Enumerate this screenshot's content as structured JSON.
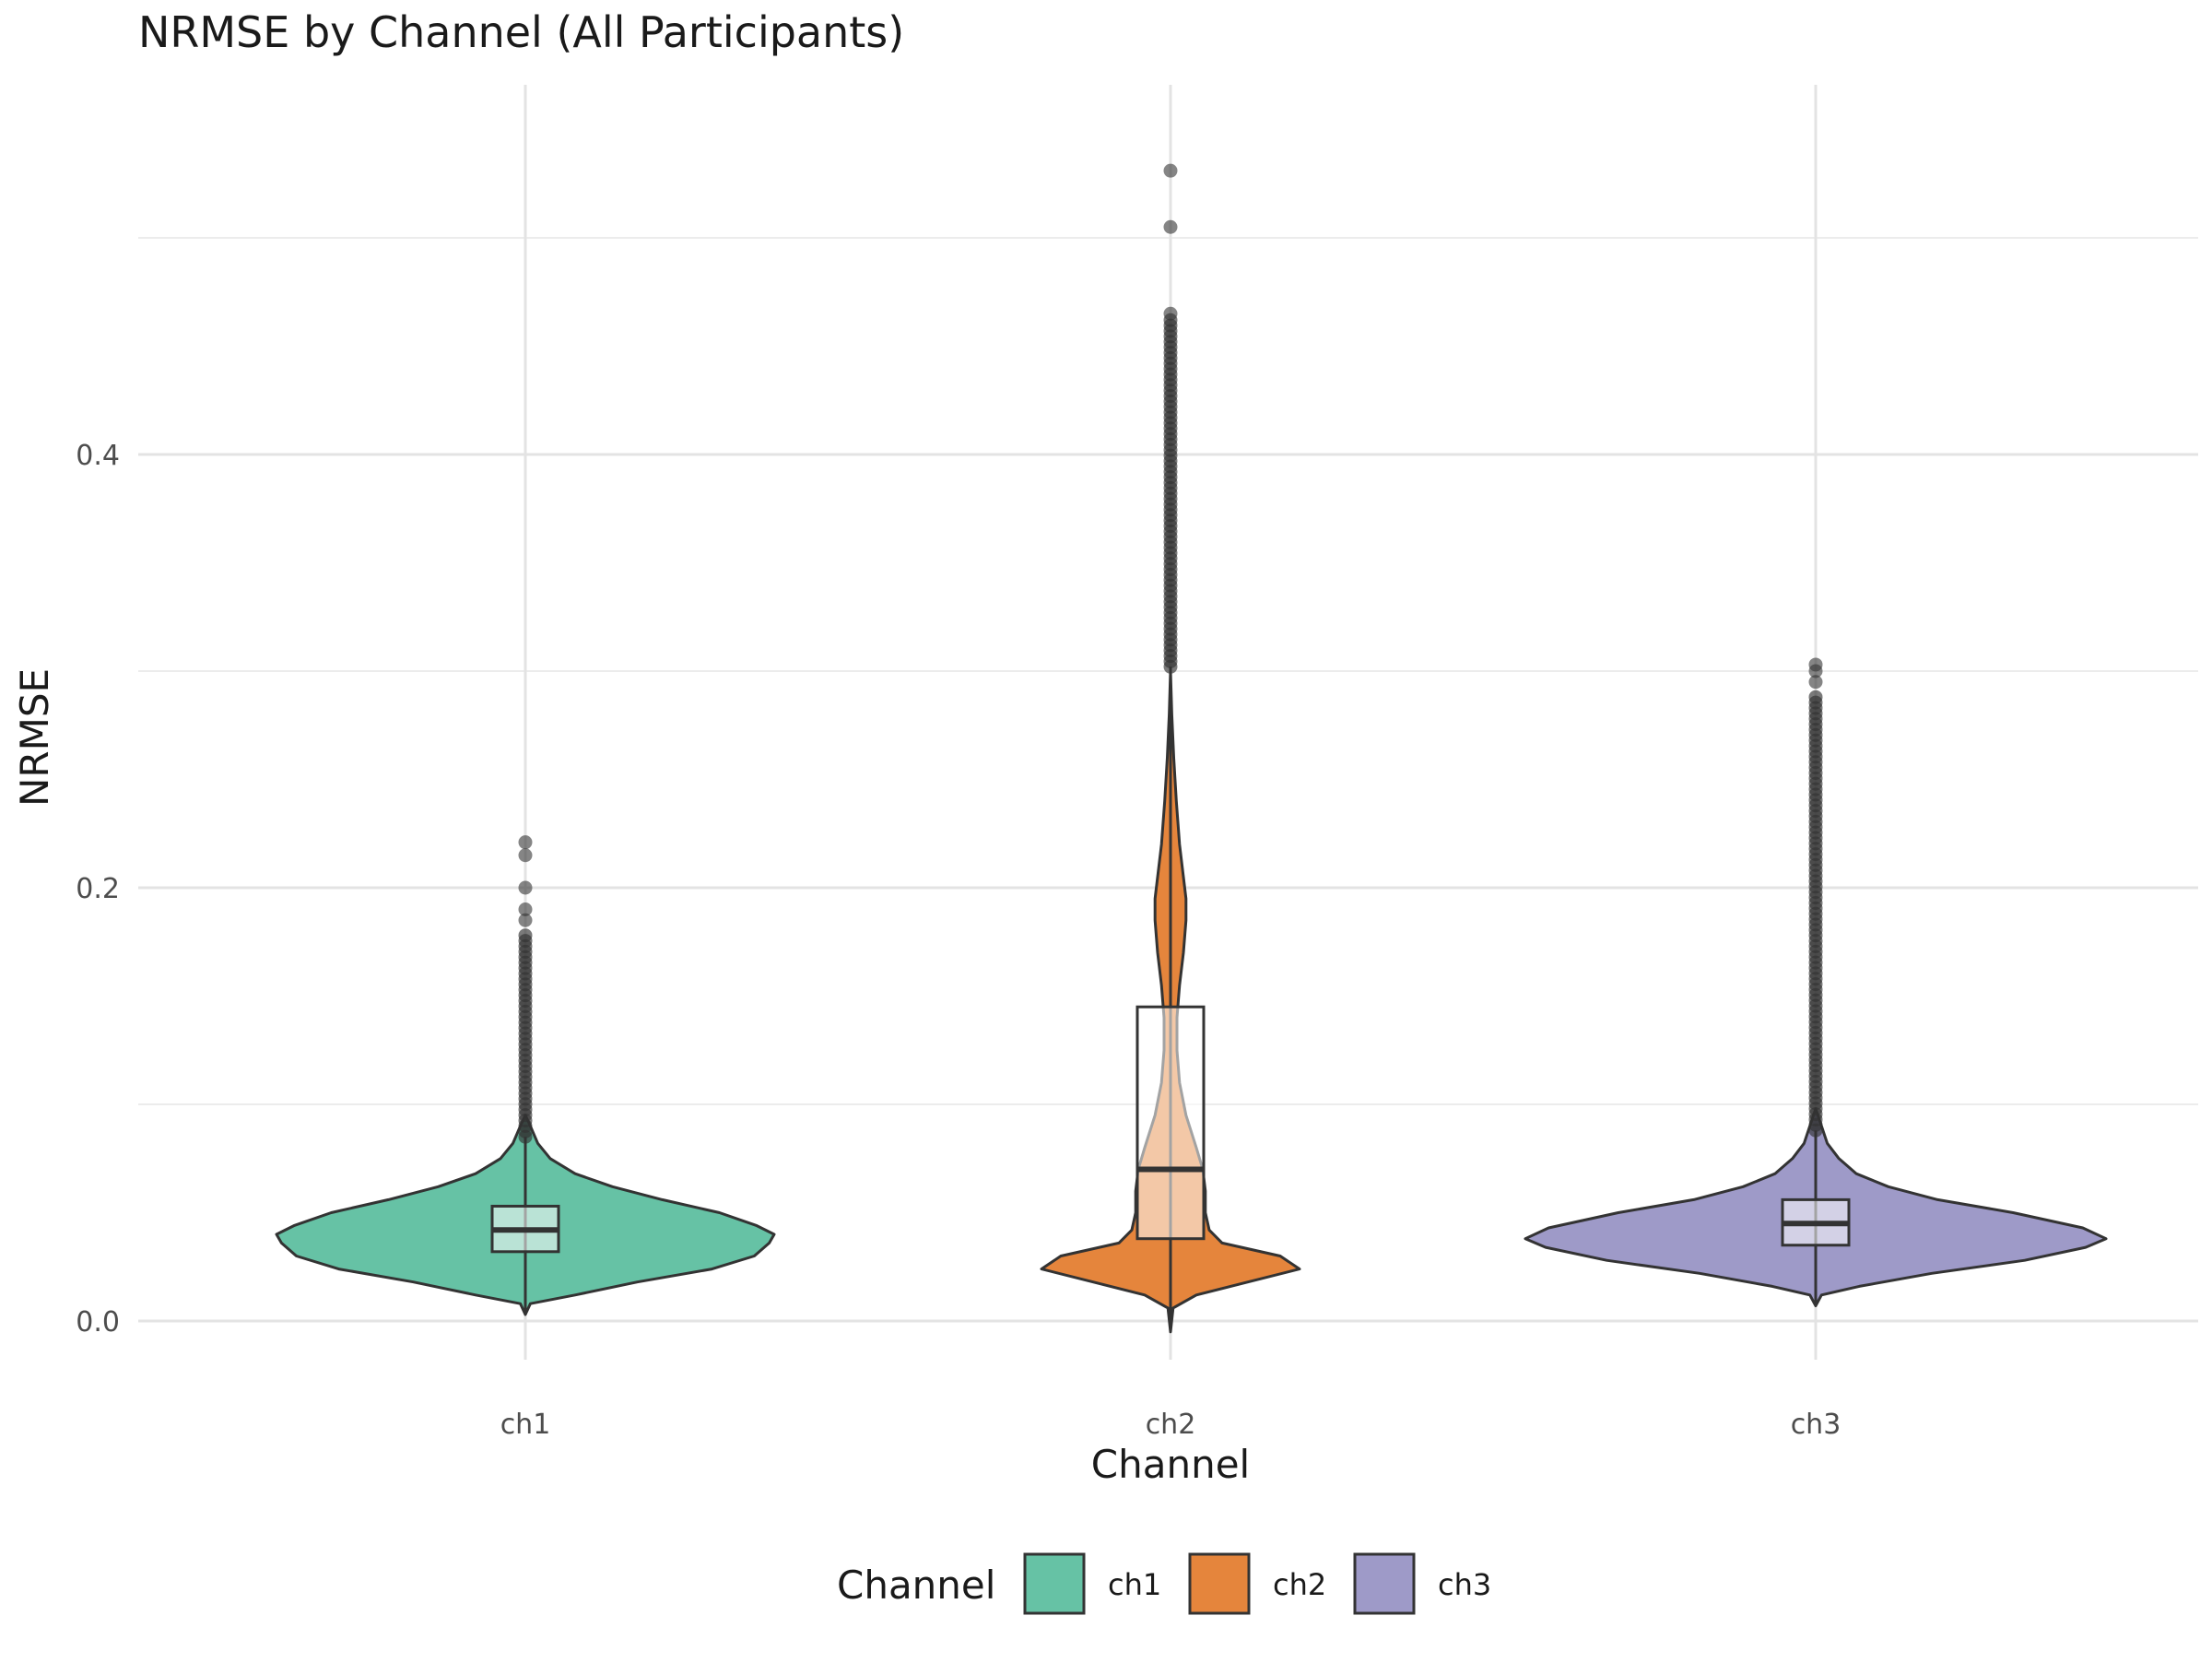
{
  "chart_data": {
    "type": "violin",
    "title": "NRMSE by Channel (All Participants)",
    "xlabel": "Channel",
    "ylabel": "NRMSE",
    "ylim": [
      -0.02,
      0.57
    ],
    "yticks": [
      0.0,
      0.2,
      0.4
    ],
    "ytick_labels": [
      "0.0",
      "0.2",
      "0.4"
    ],
    "ygrid_minor": [
      0.1,
      0.3,
      0.5
    ],
    "grid": true,
    "legend": {
      "title": "Channel",
      "position": "bottom",
      "entries": [
        "ch1",
        "ch2",
        "ch3"
      ]
    },
    "categories": [
      "ch1",
      "ch2",
      "ch3"
    ],
    "series": [
      {
        "name": "ch1",
        "color": "#66C2A5",
        "box": {
          "q1": 0.032,
          "median": 0.042,
          "q3": 0.053,
          "whisker_low": 0.003,
          "whisker_high": 0.085
        },
        "violin_profile": [
          [
            0.003,
            0.0
          ],
          [
            0.008,
            0.02
          ],
          [
            0.012,
            0.2
          ],
          [
            0.018,
            0.45
          ],
          [
            0.024,
            0.75
          ],
          [
            0.03,
            0.92
          ],
          [
            0.036,
            0.98
          ],
          [
            0.04,
            1.0
          ],
          [
            0.044,
            0.93
          ],
          [
            0.05,
            0.78
          ],
          [
            0.056,
            0.55
          ],
          [
            0.062,
            0.35
          ],
          [
            0.068,
            0.2
          ],
          [
            0.075,
            0.1
          ],
          [
            0.082,
            0.05
          ],
          [
            0.09,
            0.02
          ],
          [
            0.095,
            0.0
          ]
        ],
        "outlier_range": [
          0.085,
          0.178
        ],
        "outliers_sparse": [
          0.185,
          0.19,
          0.2,
          0.215,
          0.221
        ]
      },
      {
        "name": "ch2",
        "color": "#E5853C",
        "box": {
          "q1": 0.038,
          "median": 0.07,
          "q3": 0.145,
          "whisker_low": -0.005,
          "whisker_high": 0.302
        },
        "violin_profile": [
          [
            -0.005,
            0.0
          ],
          [
            0.006,
            0.02
          ],
          [
            0.012,
            0.2
          ],
          [
            0.018,
            0.6
          ],
          [
            0.024,
            1.0
          ],
          [
            0.03,
            0.85
          ],
          [
            0.036,
            0.4
          ],
          [
            0.042,
            0.3
          ],
          [
            0.05,
            0.27
          ],
          [
            0.06,
            0.27
          ],
          [
            0.07,
            0.25
          ],
          [
            0.08,
            0.2
          ],
          [
            0.095,
            0.12
          ],
          [
            0.11,
            0.07
          ],
          [
            0.125,
            0.05
          ],
          [
            0.14,
            0.05
          ],
          [
            0.155,
            0.07
          ],
          [
            0.17,
            0.1
          ],
          [
            0.185,
            0.12
          ],
          [
            0.195,
            0.12
          ],
          [
            0.205,
            0.1
          ],
          [
            0.22,
            0.07
          ],
          [
            0.24,
            0.045
          ],
          [
            0.26,
            0.025
          ],
          [
            0.28,
            0.01
          ],
          [
            0.3,
            0.0
          ]
        ],
        "outlier_range": [
          0.302,
          0.462
        ],
        "outliers_sparse": [
          0.465,
          0.505,
          0.531
        ]
      },
      {
        "name": "ch3",
        "color": "#9E9AC8",
        "box": {
          "q1": 0.035,
          "median": 0.045,
          "q3": 0.056,
          "whisker_low": 0.007,
          "whisker_high": 0.088
        },
        "violin_profile": [
          [
            0.007,
            0.0
          ],
          [
            0.012,
            0.02
          ],
          [
            0.016,
            0.15
          ],
          [
            0.022,
            0.4
          ],
          [
            0.028,
            0.72
          ],
          [
            0.034,
            0.93
          ],
          [
            0.038,
            1.0
          ],
          [
            0.043,
            0.92
          ],
          [
            0.05,
            0.68
          ],
          [
            0.056,
            0.42
          ],
          [
            0.062,
            0.25
          ],
          [
            0.068,
            0.14
          ],
          [
            0.075,
            0.08
          ],
          [
            0.082,
            0.04
          ],
          [
            0.09,
            0.02
          ],
          [
            0.098,
            0.0
          ]
        ],
        "outlier_range": [
          0.088,
          0.288
        ],
        "outliers_sparse": [
          0.295,
          0.3,
          0.303
        ]
      }
    ]
  }
}
